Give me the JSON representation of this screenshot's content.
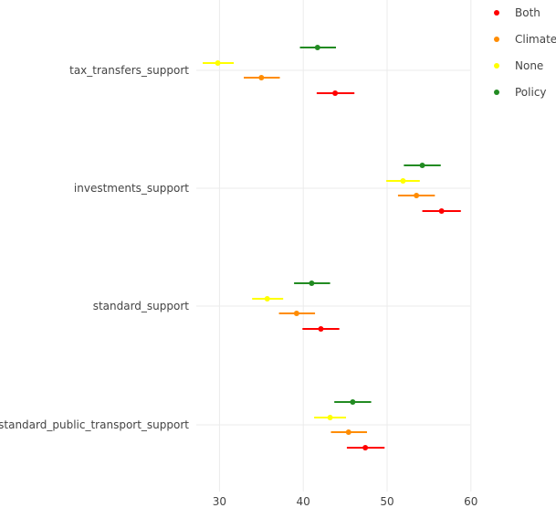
{
  "chart_data": {
    "type": "scatter",
    "subtype": "dot-with-error-bars",
    "orientation": "horizontal",
    "categories": [
      "tax_transfers_support",
      "investments_support",
      "standard_support",
      "standard_public_transport_support"
    ],
    "xlim": [
      26,
      60
    ],
    "x_ticks": [
      30,
      40,
      50,
      60
    ],
    "grid": true,
    "legend_position": "top-right",
    "series": [
      {
        "name": "Policy",
        "color": "#228b22",
        "points": [
          {
            "category": "tax_transfers_support",
            "value": 41.7,
            "low": 39.6,
            "high": 43.9
          },
          {
            "category": "investments_support",
            "value": 54.2,
            "low": 52.0,
            "high": 56.4
          },
          {
            "category": "standard_support",
            "value": 41.0,
            "low": 38.9,
            "high": 43.2
          },
          {
            "category": "standard_public_transport_support",
            "value": 45.9,
            "low": 43.7,
            "high": 48.1
          }
        ]
      },
      {
        "name": "None",
        "color": "#ffff00",
        "points": [
          {
            "category": "tax_transfers_support",
            "value": 29.8,
            "low": 28.0,
            "high": 31.7
          },
          {
            "category": "investments_support",
            "value": 51.9,
            "low": 49.9,
            "high": 53.9
          },
          {
            "category": "standard_support",
            "value": 35.7,
            "low": 33.9,
            "high": 37.6
          },
          {
            "category": "standard_public_transport_support",
            "value": 43.2,
            "low": 41.3,
            "high": 45.1
          }
        ]
      },
      {
        "name": "Climate",
        "color": "#ff8c00",
        "points": [
          {
            "category": "tax_transfers_support",
            "value": 35.0,
            "low": 32.9,
            "high": 37.2
          },
          {
            "category": "investments_support",
            "value": 53.5,
            "low": 51.3,
            "high": 55.7
          },
          {
            "category": "standard_support",
            "value": 39.2,
            "low": 37.1,
            "high": 41.4
          },
          {
            "category": "standard_public_transport_support",
            "value": 45.4,
            "low": 43.3,
            "high": 47.6
          }
        ]
      },
      {
        "name": "Both",
        "color": "#ff0000",
        "points": [
          {
            "category": "tax_transfers_support",
            "value": 43.8,
            "low": 41.6,
            "high": 46.1
          },
          {
            "category": "investments_support",
            "value": 56.5,
            "low": 54.2,
            "high": 58.8
          },
          {
            "category": "standard_support",
            "value": 42.1,
            "low": 39.9,
            "high": 44.3
          },
          {
            "category": "standard_public_transport_support",
            "value": 47.4,
            "low": 45.2,
            "high": 49.7
          }
        ]
      }
    ],
    "legend": [
      {
        "name": "Both",
        "color": "#ff0000"
      },
      {
        "name": "Climate",
        "color": "#ff8c00"
      },
      {
        "name": "None",
        "color": "#ffff00"
      },
      {
        "name": "Policy",
        "color": "#228b22"
      }
    ]
  }
}
